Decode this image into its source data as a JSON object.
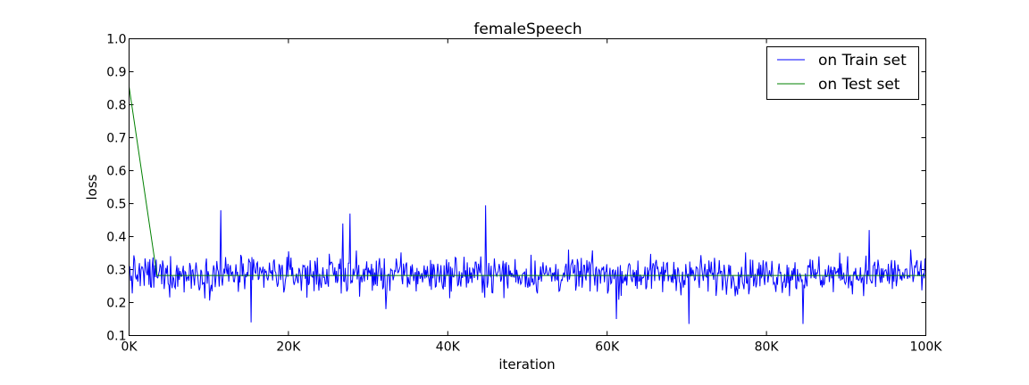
{
  "chart_data": {
    "type": "line",
    "title": "femaleSpeech",
    "xlabel": "iteration",
    "ylabel": "loss",
    "xlim": [
      0,
      100000
    ],
    "ylim": [
      0.1,
      1.0
    ],
    "x_ticks": [
      0,
      20000,
      40000,
      60000,
      80000,
      100000
    ],
    "x_tick_labels": [
      "0K",
      "20K",
      "40K",
      "60K",
      "80K",
      "100K"
    ],
    "y_ticks": [
      0.1,
      0.2,
      0.3,
      0.4,
      0.5,
      0.6,
      0.7,
      0.8,
      0.9,
      1.0
    ],
    "y_tick_labels": [
      "0.1",
      "0.2",
      "0.3",
      "0.4",
      "0.5",
      "0.6",
      "0.7",
      "0.8",
      "0.9",
      "1.0"
    ],
    "grid": false,
    "legend_position": "top-right",
    "series": [
      {
        "name": "on Train set",
        "color": "#0000ff",
        "style": "noisy",
        "points_count": 1000,
        "mean": 0.285,
        "spread": 0.055,
        "min": 0.135,
        "max": 0.495,
        "peaks": [
          [
            11500,
            0.48
          ],
          [
            15300,
            0.14
          ],
          [
            26800,
            0.44
          ],
          [
            27700,
            0.47
          ],
          [
            32200,
            0.18
          ],
          [
            44700,
            0.495
          ],
          [
            61200,
            0.15
          ],
          [
            70300,
            0.135
          ],
          [
            84600,
            0.135
          ],
          [
            92900,
            0.42
          ]
        ]
      },
      {
        "name": "on Test set",
        "color": "#008000",
        "x": [
          0,
          3500,
          100000
        ],
        "y": [
          0.855,
          0.282,
          0.282
        ]
      }
    ]
  }
}
